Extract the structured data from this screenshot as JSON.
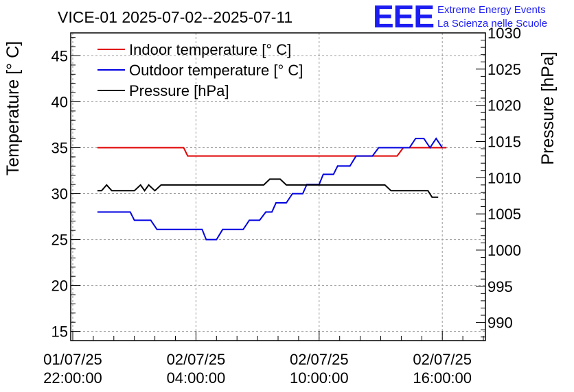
{
  "title": "VICE-01 2025-07-02--2025-07-11",
  "logo": {
    "mark": "EEE",
    "line1": "Extreme Energy Events",
    "line2": "La Scienza nelle Scuole"
  },
  "colors": {
    "indoor": "#e00000",
    "outdoor": "#0000e0",
    "pressure": "#000000",
    "grid": "#9a9a9a",
    "logo": "#1d1df2"
  },
  "chart_data": {
    "type": "line",
    "title": "VICE-01 2025-07-02--2025-07-11",
    "xlabel": "",
    "ylabel": "Temperature [° C]",
    "y2label": "Pressure [hPa]",
    "x_unit": "hours since 01/07/25 22:00:00",
    "xlim": [
      -0.1,
      20.1
    ],
    "ylim": [
      14,
      47.5
    ],
    "y2lim": [
      987.5,
      1030
    ],
    "x_ticks": [
      {
        "x": 0,
        "line1": "01/07/25",
        "line2": "22:00:00"
      },
      {
        "x": 6,
        "line1": "02/07/25",
        "line2": "04:00:00"
      },
      {
        "x": 12,
        "line1": "02/07/25",
        "line2": "10:00:00"
      },
      {
        "x": 18,
        "line1": "02/07/25",
        "line2": "16:00:00"
      }
    ],
    "y_ticks": [
      15,
      20,
      25,
      30,
      35,
      40,
      45
    ],
    "y2_ticks": [
      990,
      995,
      1000,
      1005,
      1010,
      1015,
      1020,
      1025,
      1030
    ],
    "grid": true,
    "legend_position": "top-left",
    "series": [
      {
        "name": "Indoor temperature [° C]",
        "axis": "left",
        "color": "#e00000",
        "points": [
          [
            1.2,
            35
          ],
          [
            5.4,
            35
          ],
          [
            5.6,
            34.1
          ],
          [
            15.8,
            34.1
          ],
          [
            16.1,
            35
          ],
          [
            17.5,
            35
          ],
          [
            18.2,
            35
          ]
        ]
      },
      {
        "name": "Outdoor temperature [° C]",
        "axis": "left",
        "color": "#0000e0",
        "points": [
          [
            1.2,
            28
          ],
          [
            2.8,
            28
          ],
          [
            3.0,
            27.1
          ],
          [
            3.8,
            27.1
          ],
          [
            4.1,
            26.1
          ],
          [
            6.3,
            26.1
          ],
          [
            6.5,
            25
          ],
          [
            7.0,
            25
          ],
          [
            7.3,
            26.1
          ],
          [
            8.3,
            26.1
          ],
          [
            8.6,
            27.1
          ],
          [
            9.1,
            27.1
          ],
          [
            9.4,
            28
          ],
          [
            9.7,
            28
          ],
          [
            9.9,
            29
          ],
          [
            10.4,
            29
          ],
          [
            10.7,
            30
          ],
          [
            11.2,
            30
          ],
          [
            11.4,
            31
          ],
          [
            12.0,
            31
          ],
          [
            12.2,
            32.1
          ],
          [
            12.7,
            32.1
          ],
          [
            12.9,
            33
          ],
          [
            13.5,
            33
          ],
          [
            13.8,
            34.1
          ],
          [
            14.6,
            34.1
          ],
          [
            14.9,
            35
          ],
          [
            16.4,
            35
          ],
          [
            16.7,
            36
          ],
          [
            17.1,
            36
          ],
          [
            17.4,
            35
          ],
          [
            17.7,
            36
          ],
          [
            18.0,
            35
          ]
        ]
      },
      {
        "name": "Pressure [hPa]",
        "axis": "right",
        "color": "#000000",
        "points": [
          [
            1.2,
            1008.2
          ],
          [
            1.4,
            1008.2
          ],
          [
            1.65,
            1009
          ],
          [
            1.9,
            1008.2
          ],
          [
            3.0,
            1008.2
          ],
          [
            3.3,
            1009
          ],
          [
            3.5,
            1008.2
          ],
          [
            3.7,
            1009
          ],
          [
            4.0,
            1008.2
          ],
          [
            4.3,
            1009
          ],
          [
            9.3,
            1009
          ],
          [
            9.6,
            1009.8
          ],
          [
            10.1,
            1009.8
          ],
          [
            10.4,
            1009
          ],
          [
            15.2,
            1009
          ],
          [
            15.5,
            1008.2
          ],
          [
            16.8,
            1008.2
          ],
          [
            17.3,
            1008.2
          ],
          [
            17.5,
            1007.3
          ],
          [
            17.8,
            1007.3
          ]
        ]
      }
    ]
  }
}
